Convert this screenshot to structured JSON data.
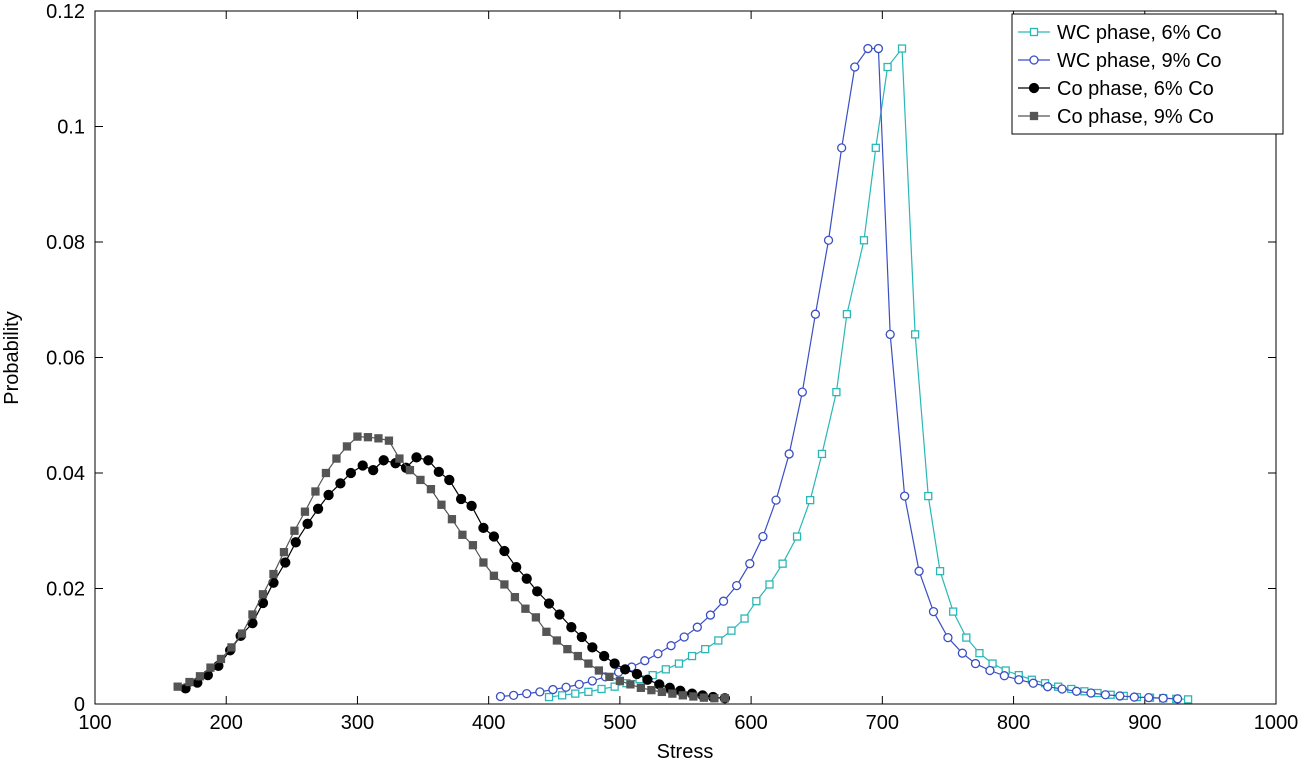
{
  "chart_data": {
    "type": "line",
    "xlabel": "Stress",
    "ylabel": "Probability",
    "xlim": [
      100,
      1000
    ],
    "ylim": [
      0,
      0.12
    ],
    "xticks": [
      100,
      200,
      300,
      400,
      500,
      600,
      700,
      800,
      900,
      1000
    ],
    "yticks": [
      0,
      0.02,
      0.04,
      0.06,
      0.08,
      0.1,
      0.12
    ],
    "grid": false,
    "legend": "upper right",
    "series": [
      {
        "name": "WC phase, 6% Co",
        "color": "#2ab7b7",
        "marker": "square",
        "filled": false,
        "x": [
          446,
          456,
          466,
          476,
          486,
          496,
          505,
          515,
          525,
          535,
          545,
          555,
          565,
          575,
          585,
          595,
          604,
          614,
          624,
          635,
          645,
          654,
          665,
          673,
          686,
          695,
          704,
          715,
          725,
          735,
          744,
          754,
          764,
          774,
          784,
          794,
          804,
          814,
          824,
          834,
          844,
          854,
          864,
          874,
          884,
          894,
          904,
          914,
          924,
          933
        ],
        "values": [
          0.0012,
          0.0015,
          0.0018,
          0.0021,
          0.0026,
          0.003,
          0.0036,
          0.0043,
          0.005,
          0.006,
          0.007,
          0.0083,
          0.0095,
          0.011,
          0.0127,
          0.0148,
          0.0178,
          0.0207,
          0.0243,
          0.029,
          0.0353,
          0.0433,
          0.054,
          0.0675,
          0.0803,
          0.0963,
          0.1103,
          0.1135,
          0.064,
          0.036,
          0.023,
          0.016,
          0.0115,
          0.0088,
          0.007,
          0.0058,
          0.005,
          0.0042,
          0.0036,
          0.003,
          0.0026,
          0.0022,
          0.0019,
          0.0016,
          0.0014,
          0.0012,
          0.0011,
          0.001,
          0.0009,
          0.0008
        ]
      },
      {
        "name": "WC phase, 9% Co",
        "color": "#3a4fc4",
        "marker": "circle",
        "filled": false,
        "x": [
          409,
          419,
          429,
          439,
          449,
          459,
          469,
          479,
          489,
          499,
          509,
          519,
          529,
          539,
          549,
          559,
          569,
          579,
          589,
          599,
          609,
          619,
          629,
          639,
          649,
          659,
          669,
          679,
          689,
          697,
          706,
          717,
          728,
          739,
          750,
          761,
          771,
          782,
          793,
          804,
          815,
          826,
          837,
          848,
          859,
          870,
          881,
          892,
          903,
          914,
          925
        ],
        "values": [
          0.0013,
          0.0015,
          0.0018,
          0.0021,
          0.0025,
          0.0029,
          0.0034,
          0.004,
          0.0047,
          0.0055,
          0.0064,
          0.0075,
          0.0087,
          0.0101,
          0.0116,
          0.0133,
          0.0154,
          0.0178,
          0.0205,
          0.0243,
          0.029,
          0.0353,
          0.0433,
          0.054,
          0.0675,
          0.0803,
          0.0963,
          0.1103,
          0.1135,
          0.1135,
          0.064,
          0.036,
          0.023,
          0.016,
          0.0115,
          0.0088,
          0.007,
          0.0058,
          0.0049,
          0.0042,
          0.0036,
          0.003,
          0.0026,
          0.0022,
          0.0019,
          0.0016,
          0.0014,
          0.0012,
          0.0011,
          0.001,
          0.0009
        ]
      },
      {
        "name": "Co phase, 6% Co",
        "color": "#000000",
        "marker": "circle",
        "filled": true,
        "x": [
          169,
          178,
          186,
          194,
          203,
          211,
          220,
          228,
          236,
          245,
          253,
          262,
          270,
          278,
          287,
          295,
          304,
          312,
          320,
          329,
          337,
          345,
          354,
          362,
          370,
          379,
          387,
          396,
          404,
          412,
          421,
          429,
          437,
          446,
          454,
          463,
          471,
          479,
          488,
          496,
          504,
          513,
          521,
          530,
          538,
          546,
          555,
          563,
          571,
          580
        ],
        "values": [
          0.0027,
          0.0037,
          0.005,
          0.0066,
          0.0093,
          0.0118,
          0.014,
          0.0175,
          0.021,
          0.0245,
          0.028,
          0.0312,
          0.0338,
          0.0362,
          0.0382,
          0.04,
          0.0413,
          0.0405,
          0.0422,
          0.0417,
          0.0409,
          0.0427,
          0.0422,
          0.0402,
          0.0388,
          0.0355,
          0.0343,
          0.0305,
          0.029,
          0.0265,
          0.0237,
          0.0217,
          0.0195,
          0.0174,
          0.0155,
          0.0133,
          0.0116,
          0.0098,
          0.0083,
          0.007,
          0.006,
          0.0052,
          0.0042,
          0.0034,
          0.0028,
          0.0023,
          0.0018,
          0.0015,
          0.0012,
          0.001
        ]
      },
      {
        "name": "Co phase, 9% Co",
        "color": "#555555",
        "marker": "square",
        "filled": true,
        "x": [
          163,
          172,
          180,
          188,
          196,
          204,
          212,
          220,
          228,
          236,
          244,
          252,
          260,
          268,
          276,
          284,
          292,
          300,
          308,
          316,
          324,
          332,
          340,
          348,
          356,
          364,
          372,
          380,
          388,
          396,
          404,
          412,
          420,
          428,
          436,
          444,
          452,
          460,
          468,
          476,
          484,
          492,
          500,
          508,
          516,
          524,
          532,
          540,
          548,
          556,
          564,
          572,
          580
        ],
        "values": [
          0.003,
          0.0038,
          0.0048,
          0.0063,
          0.0078,
          0.0098,
          0.0122,
          0.0155,
          0.019,
          0.0225,
          0.0263,
          0.03,
          0.0333,
          0.0368,
          0.04,
          0.0425,
          0.0446,
          0.0463,
          0.0462,
          0.046,
          0.0456,
          0.0425,
          0.0405,
          0.0388,
          0.0372,
          0.0345,
          0.032,
          0.0293,
          0.0275,
          0.0245,
          0.0222,
          0.0207,
          0.0185,
          0.0165,
          0.015,
          0.0125,
          0.011,
          0.0095,
          0.0083,
          0.007,
          0.0058,
          0.0047,
          0.004,
          0.0034,
          0.0028,
          0.0024,
          0.0021,
          0.0018,
          0.0015,
          0.0013,
          0.0011,
          0.001,
          0.001
        ]
      }
    ]
  }
}
